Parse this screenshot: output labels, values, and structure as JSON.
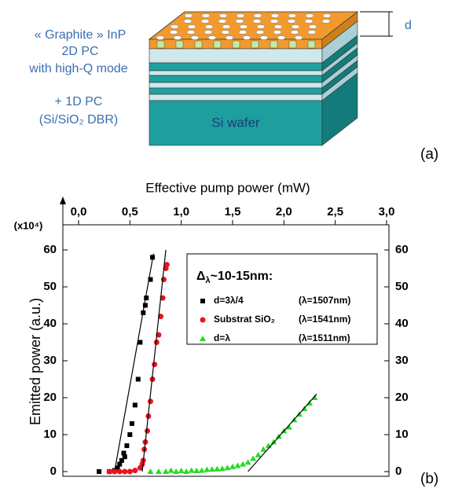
{
  "diagram": {
    "left_labels": [
      "« Graphite » InP",
      "2D PC",
      "with high-Q mode",
      "+ 1D PC",
      "(Si/SiO₂ DBR)"
    ],
    "wafer_label": "Si wafer",
    "thickness_label": "d",
    "panel_label": "(a)"
  },
  "chart_data": {
    "type": "scatter",
    "panel_label": "(b)",
    "x_label": "Effective pump power (mW)",
    "y_label": "Emitted power (a.u.)",
    "y_multiplier": "(x10⁴)",
    "legend_title": [
      "Δ",
      "λ",
      "~10-15nm:"
    ],
    "xlim": [
      0,
      3
    ],
    "ylim": [
      0,
      60
    ],
    "xticks": [
      {
        "value": 0,
        "label": "0,0"
      },
      {
        "value": 0.5,
        "label": "0,5"
      },
      {
        "value": 1,
        "label": "1,0"
      },
      {
        "value": 1.5,
        "label": "1,5"
      },
      {
        "value": 2,
        "label": "2,0"
      },
      {
        "value": 2.5,
        "label": "2,5"
      },
      {
        "value": 3,
        "label": "3,0"
      }
    ],
    "yticks": [
      0,
      10,
      20,
      30,
      40,
      50,
      60
    ],
    "series": [
      {
        "name": "d=3λ/4",
        "wavelength": "(λ=1507nm)",
        "color": "#000000",
        "marker": "square",
        "x": [
          0.2,
          0.3,
          0.35,
          0.38,
          0.4,
          0.42,
          0.44,
          0.45,
          0.47,
          0.5,
          0.52,
          0.55,
          0.58,
          0.6,
          0.63,
          0.65,
          0.66,
          0.7,
          0.72
        ],
        "values": [
          0,
          0,
          0.3,
          1,
          2,
          3,
          5,
          4,
          7,
          10,
          13,
          18,
          25,
          35,
          43,
          45,
          47,
          52,
          58
        ],
        "fit": {
          "x": [
            0.35,
            0.73
          ],
          "values": [
            0,
            59
          ]
        }
      },
      {
        "name": "Substrat SiO₂",
        "wavelength": "(λ=1541nm)",
        "color": "#e8141e",
        "marker": "circle",
        "x": [
          0.3,
          0.35,
          0.4,
          0.45,
          0.5,
          0.55,
          0.6,
          0.62,
          0.63,
          0.64,
          0.65,
          0.67,
          0.68,
          0.7,
          0.72,
          0.74,
          0.76,
          0.78,
          0.8,
          0.82,
          0.83,
          0.85,
          0.86
        ],
        "values": [
          0,
          0,
          0,
          0,
          0,
          0.3,
          1,
          2,
          3,
          6,
          8,
          11,
          15,
          19,
          25,
          29,
          35,
          37,
          42,
          47,
          52,
          55,
          56
        ],
        "fit": {
          "x": [
            0.62,
            0.85
          ],
          "values": [
            0,
            60
          ]
        }
      },
      {
        "name": "d=λ",
        "wavelength": "(λ=1511nm)",
        "color": "#22dd22",
        "marker": "triangle",
        "x": [
          0.7,
          0.78,
          0.85,
          0.9,
          0.95,
          1.0,
          1.05,
          1.1,
          1.15,
          1.2,
          1.25,
          1.3,
          1.35,
          1.4,
          1.45,
          1.5,
          1.55,
          1.6,
          1.65,
          1.7,
          1.75,
          1.8,
          1.85,
          1.9,
          1.95,
          2.0,
          2.05,
          2.1,
          2.15,
          2.2,
          2.25,
          2.3
        ],
        "values": [
          0,
          0,
          0,
          0.3,
          0,
          0.2,
          0,
          0.3,
          0.2,
          0.3,
          0.5,
          0.6,
          0.7,
          0.8,
          1,
          1.3,
          1.6,
          2,
          2.5,
          3.5,
          4.5,
          6,
          7,
          8,
          9.5,
          11,
          12,
          14,
          15.5,
          17,
          18.5,
          20
        ],
        "fit": {
          "x": [
            1.65,
            2.32
          ],
          "values": [
            0,
            21
          ]
        }
      }
    ]
  }
}
